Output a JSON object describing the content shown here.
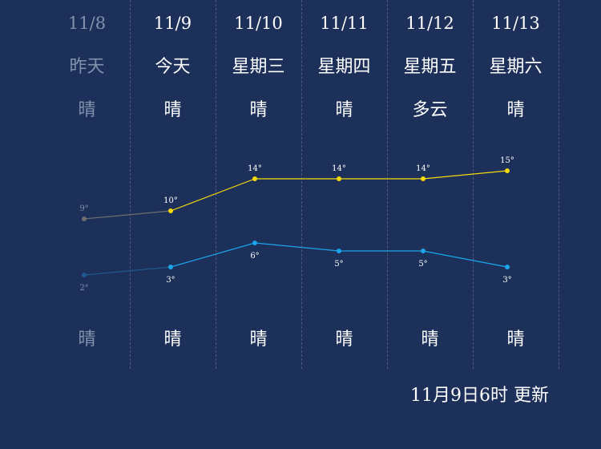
{
  "columns": [
    {
      "date": "11/8",
      "day": "昨天",
      "weather_day": "晴",
      "weather_night": "晴",
      "high": 9,
      "low": 2,
      "high_label": "9°",
      "low_label": "2°",
      "past": true
    },
    {
      "date": "11/9",
      "day": "今天",
      "weather_day": "晴",
      "weather_night": "晴",
      "high": 10,
      "low": 3,
      "high_label": "10°",
      "low_label": "3°",
      "past": false
    },
    {
      "date": "11/10",
      "day": "星期三",
      "weather_day": "晴",
      "weather_night": "晴",
      "high": 14,
      "low": 6,
      "high_label": "14°",
      "low_label": "6°",
      "past": false
    },
    {
      "date": "11/11",
      "day": "星期四",
      "weather_day": "晴",
      "weather_night": "晴",
      "high": 14,
      "low": 5,
      "high_label": "14°",
      "low_label": "5°",
      "past": false
    },
    {
      "date": "11/12",
      "day": "星期五",
      "weather_day": "多云",
      "weather_night": "晴",
      "high": 14,
      "low": 5,
      "high_label": "14°",
      "low_label": "5°",
      "past": false
    },
    {
      "date": "11/13",
      "day": "星期六",
      "weather_day": "晴",
      "weather_night": "晴",
      "high": 15,
      "low": 3,
      "high_label": "15°",
      "low_label": "3°",
      "past": false
    }
  ],
  "chart_data": {
    "type": "line",
    "categories": [
      "11/8",
      "11/9",
      "11/10",
      "11/11",
      "11/12",
      "11/13"
    ],
    "series": [
      {
        "values": [
          9,
          10,
          14,
          14,
          14,
          15
        ],
        "color": "#f5d90a"
      },
      {
        "values": [
          2,
          3,
          6,
          5,
          5,
          3
        ],
        "color": "#1ba6ea"
      }
    ],
    "past_color": "#6e6e6e",
    "past_low_color": "#1f5a8c"
  },
  "footer": {
    "updated": "11月9日6时 更新"
  }
}
